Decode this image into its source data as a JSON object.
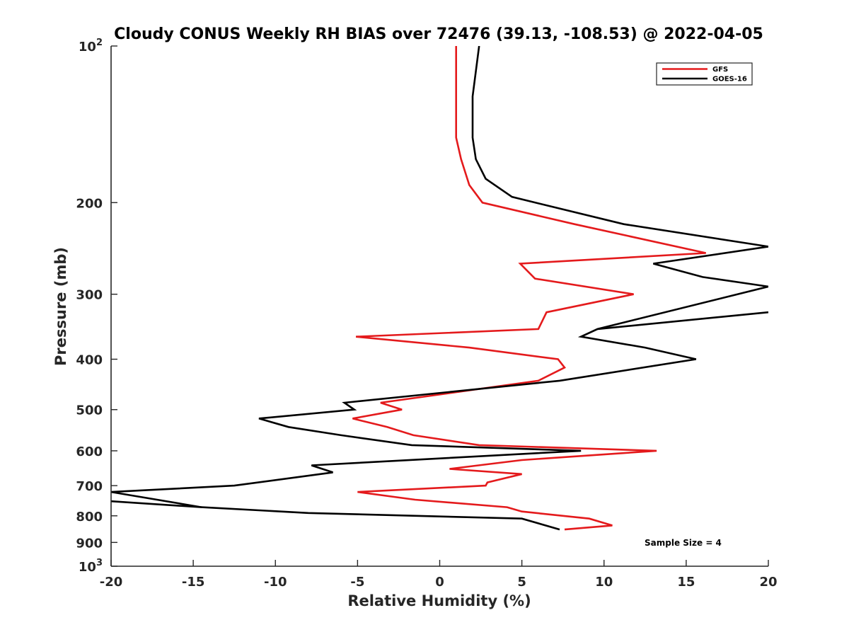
{
  "chart_data": {
    "type": "line",
    "title": "Cloudy CONUS Weekly RH BIAS over 72476 (39.13, -108.53) @ 2022-04-05",
    "xlabel": "Relative Humidity (%)",
    "ylabel": "Pressure (mb)",
    "xlim": [
      -20,
      20
    ],
    "ylim": [
      100,
      1000
    ],
    "y_scale": "log",
    "y_reversed": true,
    "grid": false,
    "legend_position": "top-right",
    "x_ticks": [
      "-20",
      "-15",
      "-10",
      "-5",
      "0",
      "5",
      "10",
      "15",
      "20"
    ],
    "y_ticks": [
      {
        "value": 100,
        "base": "10",
        "exp": "2"
      },
      {
        "value": 200,
        "label": "200"
      },
      {
        "value": 300,
        "label": "300"
      },
      {
        "value": 400,
        "label": "400"
      },
      {
        "value": 500,
        "label": "500"
      },
      {
        "value": 600,
        "label": "600"
      },
      {
        "value": 700,
        "label": "700"
      },
      {
        "value": 800,
        "label": "800"
      },
      {
        "value": 900,
        "label": "900"
      },
      {
        "value": 1000,
        "base": "10",
        "exp": "3"
      }
    ],
    "annotation": "Sample Size = 4",
    "series": [
      {
        "name": "GFS",
        "color": "#e41a1c",
        "points": [
          {
            "x": 1.0,
            "y": 100
          },
          {
            "x": 1.0,
            "y": 125
          },
          {
            "x": 1.0,
            "y": 150
          },
          {
            "x": 1.3,
            "y": 165
          },
          {
            "x": 1.8,
            "y": 185
          },
          {
            "x": 2.6,
            "y": 200
          },
          {
            "x": 8.2,
            "y": 220
          },
          {
            "x": 16.2,
            "y": 250
          },
          {
            "x": 4.9,
            "y": 262
          },
          {
            "x": 5.8,
            "y": 280
          },
          {
            "x": 11.8,
            "y": 300
          },
          {
            "x": 6.5,
            "y": 325
          },
          {
            "x": 6.0,
            "y": 350
          },
          {
            "x": -5.1,
            "y": 362
          },
          {
            "x": 1.8,
            "y": 380
          },
          {
            "x": 7.2,
            "y": 400
          },
          {
            "x": 7.6,
            "y": 415
          },
          {
            "x": 6.0,
            "y": 440
          },
          {
            "x": -3.6,
            "y": 485
          },
          {
            "x": -2.3,
            "y": 500
          },
          {
            "x": -5.3,
            "y": 520
          },
          {
            "x": -3.2,
            "y": 540
          },
          {
            "x": -1.6,
            "y": 560
          },
          {
            "x": 2.4,
            "y": 585
          },
          {
            "x": 13.2,
            "y": 600
          },
          {
            "x": 5.0,
            "y": 625
          },
          {
            "x": 0.6,
            "y": 650
          },
          {
            "x": 5.0,
            "y": 665
          },
          {
            "x": 2.9,
            "y": 690
          },
          {
            "x": 2.8,
            "y": 700
          },
          {
            "x": -5.0,
            "y": 720
          },
          {
            "x": -1.5,
            "y": 745
          },
          {
            "x": 4.1,
            "y": 770
          },
          {
            "x": 5.0,
            "y": 785
          },
          {
            "x": 9.1,
            "y": 810
          },
          {
            "x": 10.5,
            "y": 835
          },
          {
            "x": 7.6,
            "y": 850
          }
        ]
      },
      {
        "name": "GOES-16",
        "color": "#000000",
        "points": [
          {
            "x": 2.4,
            "y": 100
          },
          {
            "x": 2.0,
            "y": 125
          },
          {
            "x": 2.0,
            "y": 150
          },
          {
            "x": 2.2,
            "y": 165
          },
          {
            "x": 2.8,
            "y": 180
          },
          {
            "x": 4.4,
            "y": 195
          },
          {
            "x": 11.2,
            "y": 220
          },
          {
            "x": 20.0,
            "y": 243
          },
          {
            "x": 13.0,
            "y": 262
          },
          {
            "x": 16.0,
            "y": 278
          },
          {
            "x": 20.0,
            "y": 290
          },
          {
            "x": 9.6,
            "y": 350
          },
          {
            "x": 8.6,
            "y": 362
          },
          {
            "x": 12.5,
            "y": 380
          },
          {
            "x": 15.6,
            "y": 400
          },
          {
            "x": 7.3,
            "y": 440
          },
          {
            "x": -5.8,
            "y": 485
          },
          {
            "x": -5.2,
            "y": 500
          },
          {
            "x": -11.0,
            "y": 520
          },
          {
            "x": -9.2,
            "y": 540
          },
          {
            "x": -6.0,
            "y": 560
          },
          {
            "x": -1.7,
            "y": 585
          },
          {
            "x": 8.6,
            "y": 600
          },
          {
            "x": -7.8,
            "y": 640
          },
          {
            "x": -6.5,
            "y": 660
          },
          {
            "x": -12.5,
            "y": 700
          },
          {
            "x": -20.0,
            "y": 720
          },
          {
            "x": -14.5,
            "y": 770
          },
          {
            "x": -8.0,
            "y": 790
          },
          {
            "x": 5.0,
            "y": 810
          },
          {
            "x": 7.3,
            "y": 850
          }
        ],
        "extra_segment": [
          {
            "x": 20.0,
            "y": 325
          },
          {
            "x": 9.6,
            "y": 350
          }
        ],
        "gap_segment": [
          {
            "x": -20.0,
            "y": 750
          },
          {
            "x": -14.5,
            "y": 770
          }
        ]
      }
    ]
  }
}
